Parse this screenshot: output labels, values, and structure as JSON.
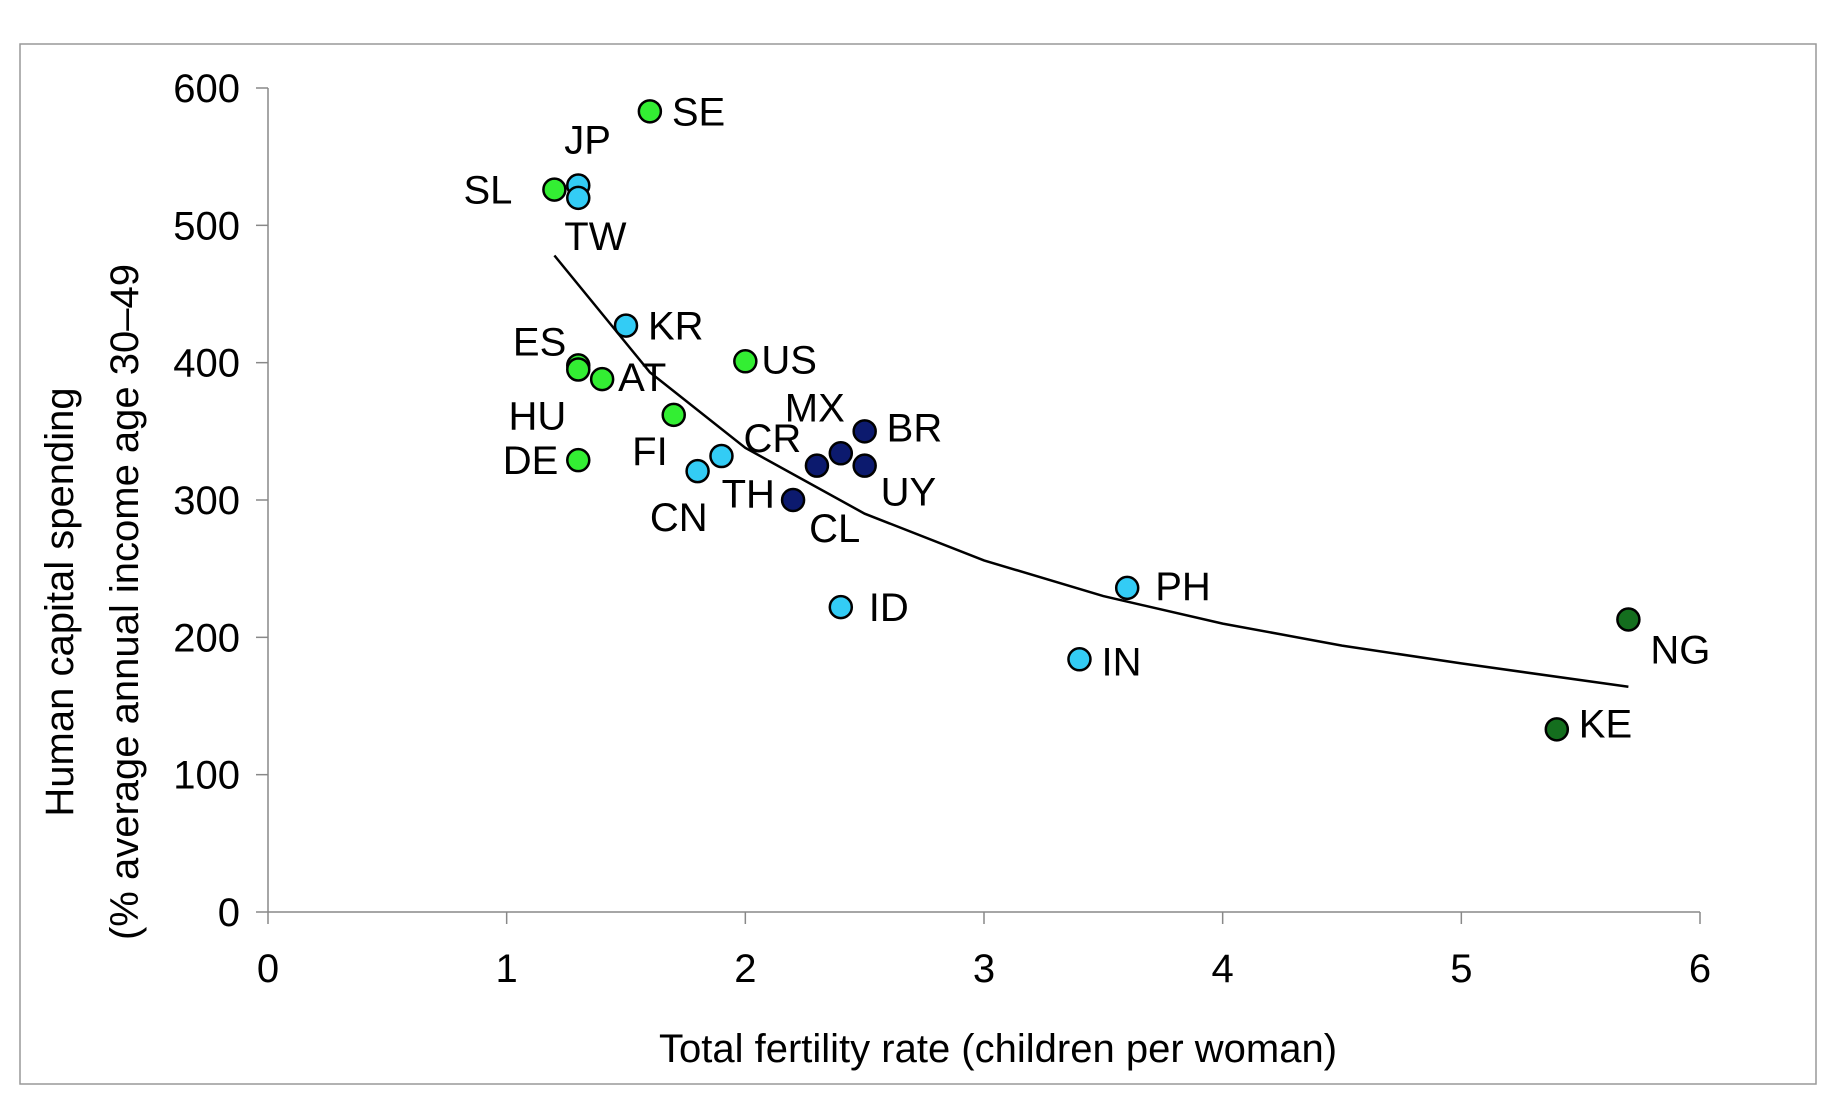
{
  "chart_data": {
    "type": "scatter",
    "title": "",
    "xlabel": "Total fertility rate (children per woman)",
    "ylabel_line1": "Human capital spending",
    "ylabel_line2": "(% average annual income age 30–49",
    "xlim": [
      0,
      6
    ],
    "ylim": [
      0,
      600
    ],
    "x_ticks": [
      0,
      1,
      2,
      3,
      4,
      5,
      6
    ],
    "y_ticks": [
      0,
      100,
      200,
      300,
      400,
      500,
      600
    ],
    "grid": false,
    "legend": "none",
    "colors": {
      "bright_green": "#33ee33",
      "light_blue": "#33ccf5",
      "dark_blue": "#0c1a6e",
      "dark_green": "#146e1e"
    },
    "points": [
      {
        "label": "SE",
        "x": 1.6,
        "y": 583,
        "color": "bright_green"
      },
      {
        "label": "JP",
        "x": 1.3,
        "y": 529,
        "color": "light_blue"
      },
      {
        "label": "SL",
        "x": 1.2,
        "y": 526,
        "color": "bright_green"
      },
      {
        "label": "TW",
        "x": 1.3,
        "y": 520,
        "color": "light_blue"
      },
      {
        "label": "KR",
        "x": 1.5,
        "y": 427,
        "color": "light_blue"
      },
      {
        "label": "ES",
        "x": 1.3,
        "y": 398,
        "color": "bright_green"
      },
      {
        "label": "HU",
        "x": 1.3,
        "y": 395,
        "color": "bright_green"
      },
      {
        "label": "AT",
        "x": 1.4,
        "y": 388,
        "color": "bright_green"
      },
      {
        "label": "US",
        "x": 2.0,
        "y": 401,
        "color": "bright_green"
      },
      {
        "label": "FI",
        "x": 1.7,
        "y": 362,
        "color": "bright_green"
      },
      {
        "label": "DE",
        "x": 1.3,
        "y": 329,
        "color": "bright_green"
      },
      {
        "label": "CR",
        "x": 1.9,
        "y": 332,
        "color": "light_blue"
      },
      {
        "label": "CN",
        "x": 1.8,
        "y": 321,
        "color": "light_blue"
      },
      {
        "label": "TH",
        "x": 2.3,
        "y": 325,
        "color": "dark_blue"
      },
      {
        "label": "MX",
        "x": 2.4,
        "y": 334,
        "color": "dark_blue"
      },
      {
        "label": "BR",
        "x": 2.5,
        "y": 350,
        "color": "dark_blue"
      },
      {
        "label": "UY",
        "x": 2.5,
        "y": 325,
        "color": "dark_blue"
      },
      {
        "label": "CL",
        "x": 2.2,
        "y": 300,
        "color": "dark_blue"
      },
      {
        "label": "ID",
        "x": 2.4,
        "y": 222,
        "color": "light_blue"
      },
      {
        "label": "PH",
        "x": 3.6,
        "y": 236,
        "color": "light_blue"
      },
      {
        "label": "IN",
        "x": 3.4,
        "y": 184,
        "color": "light_blue"
      },
      {
        "label": "NG",
        "x": 5.7,
        "y": 213,
        "color": "dark_green"
      },
      {
        "label": "KE",
        "x": 5.4,
        "y": 133,
        "color": "dark_green"
      }
    ],
    "trendline": {
      "type": "power",
      "points": [
        {
          "x": 1.2,
          "y": 478
        },
        {
          "x": 1.6,
          "y": 393
        },
        {
          "x": 2.0,
          "y": 338
        },
        {
          "x": 2.5,
          "y": 290
        },
        {
          "x": 3.0,
          "y": 256
        },
        {
          "x": 3.5,
          "y": 230
        },
        {
          "x": 4.0,
          "y": 210
        },
        {
          "x": 4.5,
          "y": 194
        },
        {
          "x": 5.0,
          "y": 181
        },
        {
          "x": 5.7,
          "y": 164
        }
      ]
    }
  }
}
